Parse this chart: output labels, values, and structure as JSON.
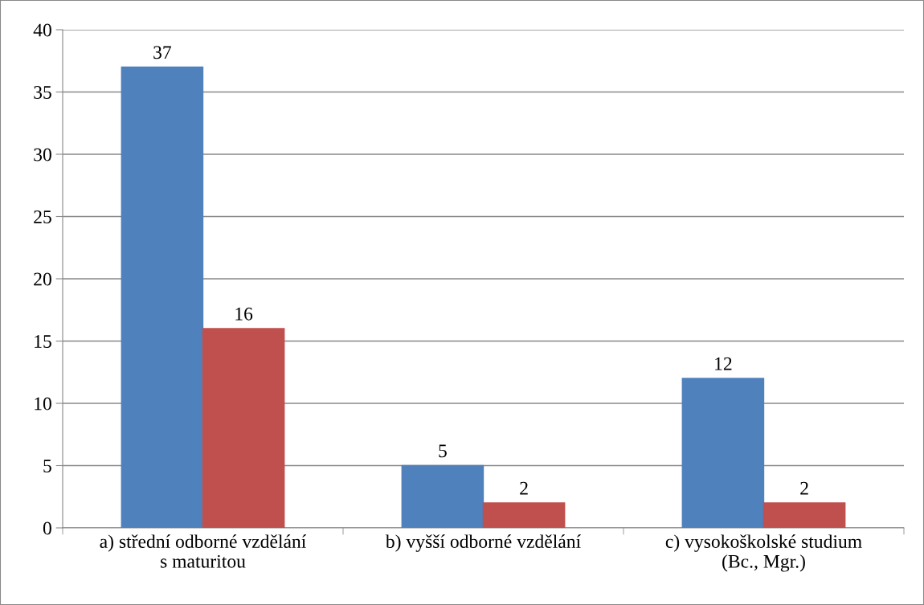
{
  "chart_data": {
    "type": "bar",
    "categories": [
      "a) střední odborné vzdělání\ns maturitou",
      "b) vyšší odborné vzdělání",
      "c) vysokoškolské studium\n(Bc., Mgr.)"
    ],
    "series": [
      {
        "color": "#4f81bd",
        "values": [
          37,
          5,
          12
        ]
      },
      {
        "color": "#c0504d",
        "values": [
          16,
          2,
          2
        ]
      }
    ],
    "ylim": [
      0,
      40
    ],
    "yticks": [
      0,
      5,
      10,
      15,
      20,
      25,
      30,
      35,
      40
    ],
    "grid": "y",
    "data_labels": true,
    "legend": false
  }
}
